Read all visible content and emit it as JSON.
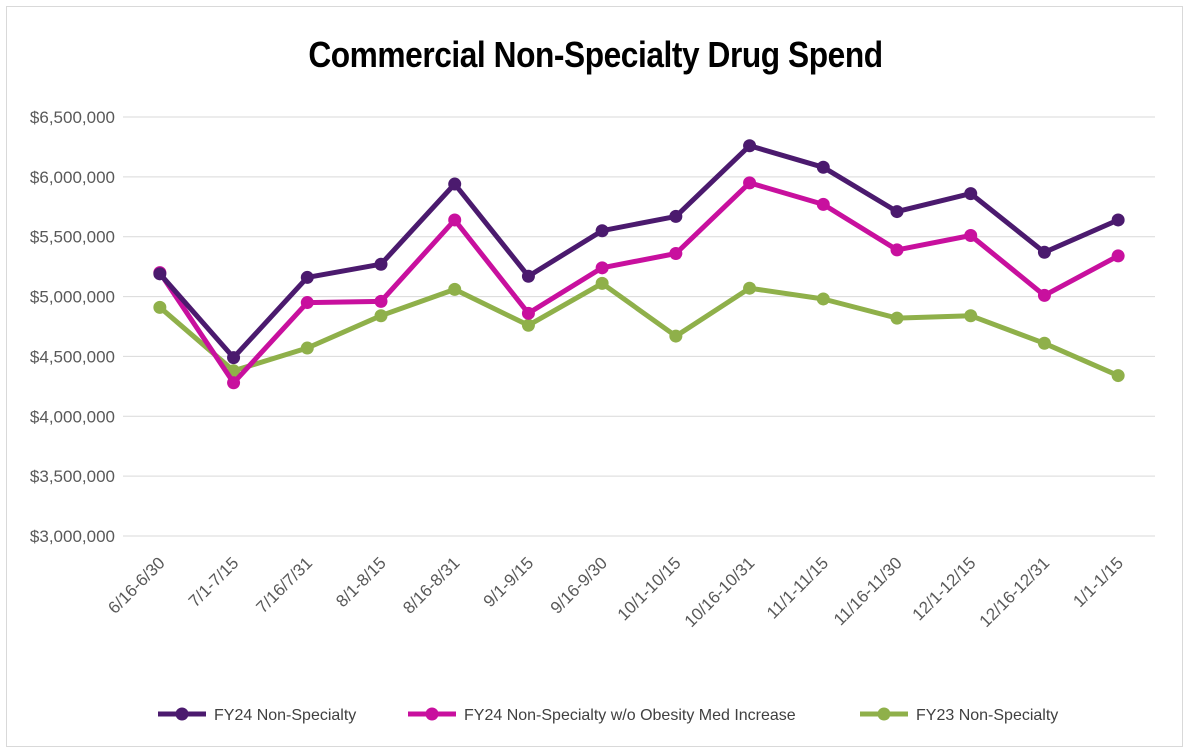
{
  "chart_data": {
    "type": "line",
    "title": "Commercial Non-Specialty Drug Spend",
    "xlabel": "",
    "ylabel": "",
    "categories": [
      "6/16-6/30",
      "7/1-7/15",
      "7/16/7/31",
      "8/1-8/15",
      "8/16-8/31",
      "9/1-9/15",
      "9/16-9/30",
      "10/1-10/15",
      "10/16-10/31",
      "11/1-11/15",
      "11/16-11/30",
      "12/1-12/15",
      "12/16-12/31",
      "1/1-1/15"
    ],
    "ylim": [
      3000000,
      6500000
    ],
    "yticks": [
      {
        "value": 3000000,
        "label": "$3,000,000"
      },
      {
        "value": 3500000,
        "label": "$3,500,000"
      },
      {
        "value": 4000000,
        "label": "$4,000,000"
      },
      {
        "value": 4500000,
        "label": "$4,500,000"
      },
      {
        "value": 5000000,
        "label": "$5,000,000"
      },
      {
        "value": 5500000,
        "label": "$5,500,000"
      },
      {
        "value": 6000000,
        "label": "$6,000,000"
      },
      {
        "value": 6500000,
        "label": "$6,500,000"
      }
    ],
    "grid": true,
    "legend_position": "bottom",
    "series": [
      {
        "name": "FY24 Non-Specialty",
        "color": "#4b1a6e",
        "values": [
          5190000,
          4490000,
          5160000,
          5270000,
          5940000,
          5170000,
          5550000,
          5670000,
          6260000,
          6080000,
          5710000,
          5860000,
          5370000,
          5640000
        ]
      },
      {
        "name": "FY24 Non-Specialty w/o Obesity Med Increase",
        "color": "#c8109e",
        "values": [
          5200000,
          4280000,
          4950000,
          4960000,
          5640000,
          4860000,
          5240000,
          5360000,
          5950000,
          5770000,
          5390000,
          5510000,
          5010000,
          5340000
        ]
      },
      {
        "name": "FY23 Non-Specialty",
        "color": "#8fb04a",
        "values": [
          4910000,
          4380000,
          4570000,
          4840000,
          5060000,
          4760000,
          5110000,
          4670000,
          5070000,
          4980000,
          4820000,
          4840000,
          4610000,
          4340000
        ]
      }
    ]
  }
}
